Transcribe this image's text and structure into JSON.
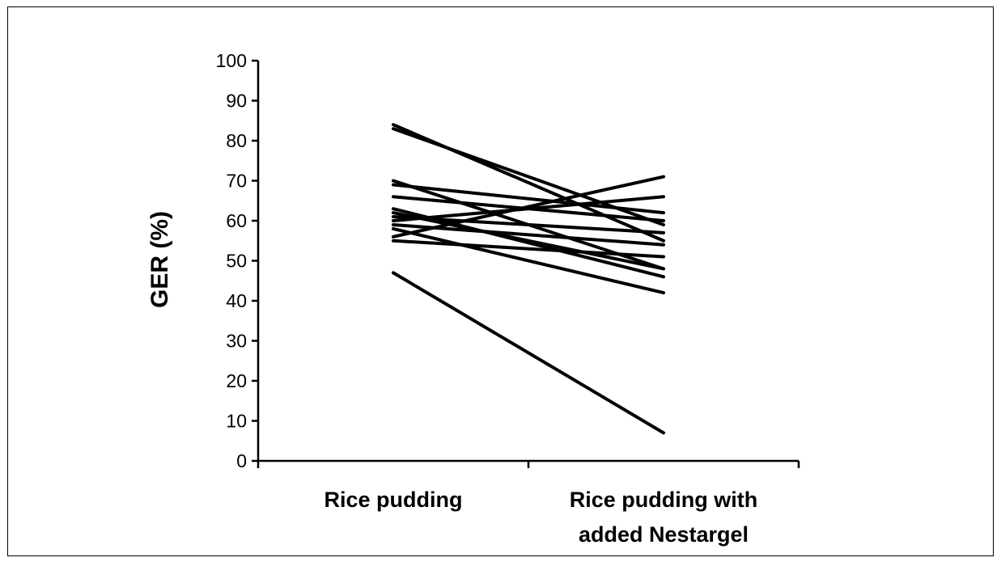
{
  "chart_data": {
    "type": "line",
    "title": "",
    "ylabel": "GER (%)",
    "xlabel": "",
    "categories": [
      "Rice pudding",
      "Rice pudding with added Nestargel"
    ],
    "category_label_lines": [
      [
        "Rice pudding"
      ],
      [
        "Rice pudding with",
        "added Nestargel"
      ]
    ],
    "ylim": [
      0,
      100
    ],
    "yticks": [
      0,
      10,
      20,
      30,
      40,
      50,
      60,
      70,
      80,
      90,
      100
    ],
    "grid": false,
    "line_color": "#000000",
    "series": [
      {
        "values": [
          84,
          55
        ]
      },
      {
        "values": [
          83,
          59
        ]
      },
      {
        "values": [
          70,
          48
        ]
      },
      {
        "values": [
          69,
          62
        ]
      },
      {
        "values": [
          66,
          60
        ]
      },
      {
        "values": [
          63,
          46
        ]
      },
      {
        "values": [
          62,
          48
        ]
      },
      {
        "values": [
          61,
          57
        ]
      },
      {
        "values": [
          60,
          66
        ]
      },
      {
        "values": [
          59,
          54
        ]
      },
      {
        "values": [
          58,
          42
        ]
      },
      {
        "values": [
          56,
          71
        ]
      },
      {
        "values": [
          55,
          51
        ]
      },
      {
        "values": [
          47,
          7
        ]
      }
    ]
  }
}
